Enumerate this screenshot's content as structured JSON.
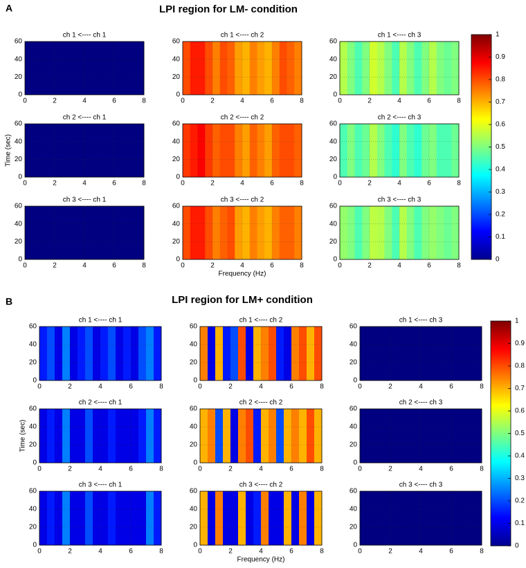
{
  "panels": [
    {
      "label": "A",
      "title": "LPI region for LM- condition",
      "xlabel": "Frequency (Hz)",
      "ylabel": "Time (sec)",
      "xlim": [
        0,
        8
      ],
      "xticks": [
        0,
        2,
        4,
        6,
        8
      ],
      "ylim": [
        0,
        60
      ],
      "yticks": [
        0,
        20,
        40,
        60
      ],
      "colorbar": {
        "lim": [
          0,
          1
        ],
        "ticks": [
          0,
          0.1,
          0.2,
          0.3,
          0.4,
          0.5,
          0.6,
          0.7,
          0.8,
          0.9,
          1
        ]
      },
      "charts": [
        {
          "type": "heatmap",
          "title": "ch 1 <---- ch 1",
          "values": [
            0,
            0,
            0,
            0,
            0,
            0,
            0,
            0,
            0,
            0,
            0,
            0,
            0,
            0,
            0,
            0
          ]
        },
        {
          "type": "heatmap",
          "title": "ch 1 <---- ch 2",
          "values": [
            0.8,
            0.85,
            0.85,
            0.8,
            0.75,
            0.8,
            0.78,
            0.72,
            0.7,
            0.75,
            0.72,
            0.7,
            0.75,
            0.8,
            0.78,
            0.75
          ]
        },
        {
          "type": "heatmap",
          "title": "ch 1 <---- ch 3",
          "values": [
            0.55,
            0.5,
            0.45,
            0.5,
            0.58,
            0.55,
            0.5,
            0.45,
            0.55,
            0.5,
            0.45,
            0.5,
            0.55,
            0.5,
            0.48,
            0.5
          ]
        },
        {
          "type": "heatmap",
          "title": "ch 2 <---- ch 1",
          "values": [
            0,
            0,
            0,
            0,
            0,
            0,
            0,
            0,
            0,
            0,
            0,
            0,
            0,
            0,
            0,
            0
          ]
        },
        {
          "type": "heatmap",
          "title": "ch 2 <---- ch 2",
          "values": [
            0.82,
            0.85,
            0.88,
            0.82,
            0.78,
            0.8,
            0.8,
            0.75,
            0.72,
            0.78,
            0.75,
            0.72,
            0.78,
            0.8,
            0.8,
            0.78
          ]
        },
        {
          "type": "heatmap",
          "title": "ch 2 <---- ch 3",
          "values": [
            0.45,
            0.5,
            0.45,
            0.48,
            0.55,
            0.5,
            0.45,
            0.42,
            0.5,
            0.45,
            0.42,
            0.48,
            0.5,
            0.45,
            0.45,
            0.48
          ]
        },
        {
          "type": "heatmap",
          "title": "ch 3 <---- ch 1",
          "values": [
            0,
            0,
            0,
            0,
            0,
            0,
            0,
            0,
            0,
            0,
            0,
            0,
            0,
            0,
            0,
            0
          ]
        },
        {
          "type": "heatmap",
          "title": "ch 3 <---- ch 2",
          "values": [
            0.8,
            0.85,
            0.85,
            0.8,
            0.75,
            0.78,
            0.8,
            0.72,
            0.7,
            0.75,
            0.72,
            0.7,
            0.75,
            0.78,
            0.78,
            0.75
          ]
        },
        {
          "type": "heatmap",
          "title": "ch 3 <---- ch 3",
          "values": [
            0.52,
            0.5,
            0.45,
            0.5,
            0.56,
            0.55,
            0.5,
            0.45,
            0.55,
            0.5,
            0.45,
            0.5,
            0.52,
            0.5,
            0.48,
            0.5
          ]
        }
      ]
    },
    {
      "label": "B",
      "title": "LPI region for LM+ condition",
      "xlabel": "Frequency (Hz)",
      "ylabel": "Time (sec)",
      "xlim": [
        0,
        8
      ],
      "xticks": [
        0,
        2,
        4,
        6,
        8
      ],
      "ylim": [
        0,
        60
      ],
      "yticks": [
        0,
        20,
        40,
        60
      ],
      "colorbar": {
        "lim": [
          0,
          1
        ],
        "ticks": [
          0,
          0.1,
          0.2,
          0.3,
          0.4,
          0.5,
          0.6,
          0.7,
          0.8,
          0.9,
          1
        ]
      },
      "charts": [
        {
          "type": "heatmap",
          "title": "ch 1 <---- ch 1",
          "values": [
            0.15,
            0.2,
            0.1,
            0.25,
            0.1,
            0.15,
            0.2,
            0.1,
            0.15,
            0.2,
            0.1,
            0.15,
            0.1,
            0.2,
            0.25,
            0.15
          ]
        },
        {
          "type": "heatmap",
          "title": "ch 1 <---- ch 2",
          "values": [
            0.75,
            0.1,
            0.7,
            0.15,
            0.2,
            0.8,
            0.1,
            0.7,
            0.75,
            0.8,
            0.15,
            0.1,
            0.75,
            0.8,
            0.7,
            0.8
          ]
        },
        {
          "type": "heatmap",
          "title": "ch 1 <---- ch 3",
          "values": [
            0,
            0,
            0,
            0,
            0,
            0,
            0,
            0,
            0,
            0,
            0,
            0,
            0,
            0,
            0,
            0
          ]
        },
        {
          "type": "heatmap",
          "title": "ch 2 <---- ch 1",
          "values": [
            0.1,
            0.15,
            0.1,
            0.25,
            0.1,
            0.1,
            0.2,
            0.1,
            0.1,
            0.15,
            0.1,
            0.1,
            0.1,
            0.15,
            0.25,
            0.15
          ]
        },
        {
          "type": "heatmap",
          "title": "ch 2 <---- ch 2",
          "values": [
            0.7,
            0.75,
            0.2,
            0.7,
            0.1,
            0.75,
            0.8,
            0.15,
            0.7,
            0.75,
            0.2,
            0.7,
            0.75,
            0.7,
            0.8,
            0.7
          ]
        },
        {
          "type": "heatmap",
          "title": "ch 2 <---- ch 3",
          "values": [
            0,
            0,
            0,
            0,
            0,
            0,
            0,
            0,
            0,
            0,
            0,
            0,
            0,
            0,
            0,
            0
          ]
        },
        {
          "type": "heatmap",
          "title": "ch 3 <---- ch 1",
          "values": [
            0.1,
            0.15,
            0.1,
            0.25,
            0.1,
            0.1,
            0.2,
            0.1,
            0.1,
            0.15,
            0.1,
            0.1,
            0.1,
            0.1,
            0.25,
            0.15
          ]
        },
        {
          "type": "heatmap",
          "title": "ch 3 <---- ch 2",
          "values": [
            0.7,
            0.1,
            0.75,
            0.1,
            0.1,
            0.7,
            0.1,
            0.15,
            0.75,
            0.1,
            0.1,
            0.7,
            0.1,
            0.75,
            0.1,
            0.7
          ]
        },
        {
          "type": "heatmap",
          "title": "ch 3 <---- ch 3",
          "values": [
            0,
            0,
            0,
            0,
            0,
            0,
            0,
            0,
            0,
            0,
            0,
            0,
            0,
            0,
            0,
            0
          ]
        }
      ]
    }
  ]
}
